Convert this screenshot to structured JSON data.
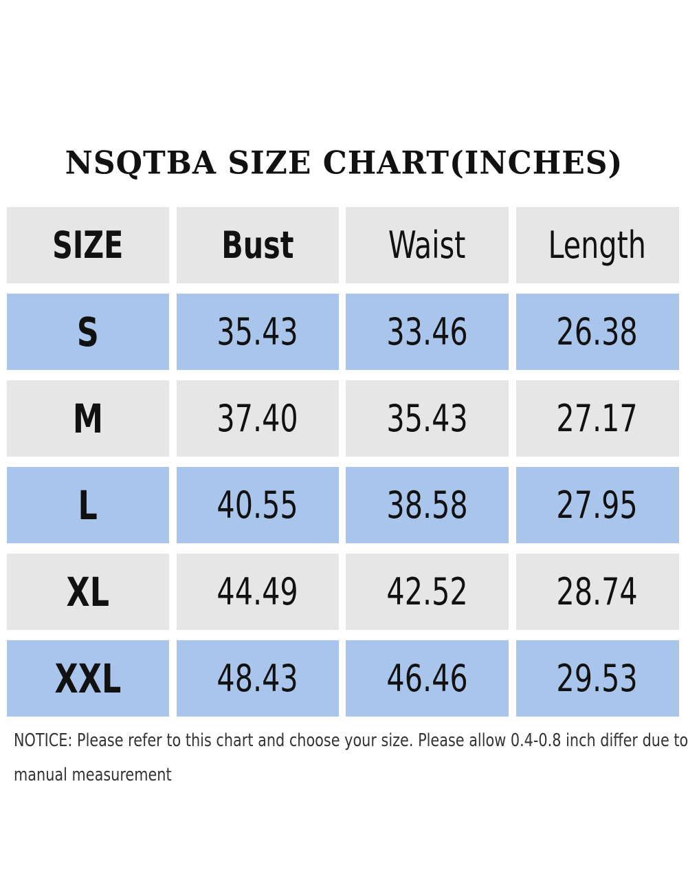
{
  "title": "NSQTBA SIZE CHART(INCHES)",
  "colors": {
    "header_bg": "#e6e6e6",
    "alt_row_bg": "#a9c5eb",
    "text": "#111111"
  },
  "table": {
    "headers": [
      "SIZE",
      "Bust",
      "Waist",
      "Length"
    ],
    "rows": [
      [
        "S",
        "35.43",
        "33.46",
        "26.38"
      ],
      [
        "M",
        "37.40",
        "35.43",
        "27.17"
      ],
      [
        "L",
        "40.55",
        "38.58",
        "27.95"
      ],
      [
        "XL",
        "44.49",
        "42.52",
        "28.74"
      ],
      [
        "XXL",
        "48.43",
        "46.46",
        "29.53"
      ]
    ]
  },
  "notice": {
    "line1": "NOTICE: Please refer to this chart and choose your size. Please allow 0.4-0.8 inch differ due to",
    "line2": "manual measurement"
  }
}
